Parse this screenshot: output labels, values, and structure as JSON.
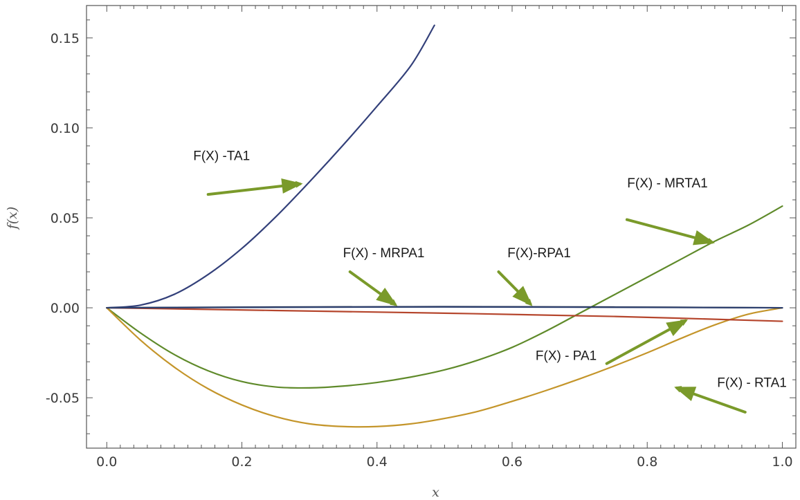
{
  "chart_data": {
    "type": "line",
    "xlabel": "x",
    "ylabel": "f(x)",
    "xlim": [
      -0.03,
      1.02
    ],
    "ylim": [
      -0.078,
      0.168
    ],
    "x_ticks": [
      0.0,
      0.2,
      0.4,
      0.6,
      0.8,
      1.0
    ],
    "x_tick_labels": [
      "0.0",
      "0.2",
      "0.4",
      "0.6",
      "0.8",
      "1.0"
    ],
    "y_ticks": [
      -0.05,
      0.0,
      0.05,
      0.1,
      0.15
    ],
    "y_tick_labels": [
      "-0.05",
      "0.00",
      "0.05",
      "0.10",
      "0.15"
    ],
    "grid": false,
    "series": [
      {
        "name": "F(X) -TA1",
        "color": "#33407a",
        "x": [
          0.0,
          0.05,
          0.1,
          0.15,
          0.2,
          0.25,
          0.3,
          0.35,
          0.4,
          0.45,
          0.485
        ],
        "y": [
          0.0,
          0.0015,
          0.0075,
          0.0185,
          0.033,
          0.0505,
          0.07,
          0.0905,
          0.112,
          0.1345,
          0.157
        ]
      },
      {
        "name": "F(X) - MRTA1",
        "color": "#5f8a2a",
        "x": [
          0.0,
          0.05,
          0.1,
          0.15,
          0.2,
          0.25,
          0.3,
          0.35,
          0.4,
          0.45,
          0.5,
          0.55,
          0.6,
          0.65,
          0.7,
          0.75,
          0.8,
          0.85,
          0.9,
          0.95,
          1.0
        ],
        "y": [
          0.0,
          -0.014,
          -0.026,
          -0.035,
          -0.041,
          -0.044,
          -0.0445,
          -0.0435,
          -0.0415,
          -0.0385,
          -0.0345,
          -0.029,
          -0.022,
          -0.013,
          -0.003,
          0.007,
          0.017,
          0.027,
          0.037,
          0.046,
          0.0565
        ]
      },
      {
        "name": "F(X) - RTA1",
        "color": "#c4952a",
        "x": [
          0.0,
          0.05,
          0.1,
          0.15,
          0.2,
          0.25,
          0.3,
          0.35,
          0.4,
          0.45,
          0.5,
          0.55,
          0.6,
          0.65,
          0.7,
          0.75,
          0.8,
          0.85,
          0.9,
          0.95,
          1.0
        ],
        "y": [
          0.0,
          -0.018,
          -0.033,
          -0.045,
          -0.054,
          -0.0605,
          -0.0645,
          -0.066,
          -0.066,
          -0.0645,
          -0.0615,
          -0.0575,
          -0.052,
          -0.046,
          -0.0395,
          -0.0325,
          -0.025,
          -0.017,
          -0.0095,
          -0.0035,
          0.0
        ]
      },
      {
        "name": "F(X) - PA1",
        "color": "#b5452c",
        "x": [
          0.0,
          0.25,
          0.5,
          0.75,
          1.0
        ],
        "y": [
          0.0,
          -0.0015,
          -0.003,
          -0.0048,
          -0.0075
        ]
      },
      {
        "name": "F(X) - MRPA1",
        "color": "#1d2433",
        "x": [
          0.0,
          0.25,
          0.5,
          0.75,
          1.0
        ],
        "y": [
          0.0,
          0.0004,
          0.0006,
          0.0004,
          0.0
        ]
      },
      {
        "name": "F(X)-RPA1",
        "color": "#2c3f6e",
        "x": [
          0.0,
          0.25,
          0.5,
          0.75,
          1.0
        ],
        "y": [
          0.0,
          0.0003,
          0.0005,
          0.0003,
          0.0
        ]
      }
    ],
    "annotations": [
      {
        "text": "F(X) -TA1",
        "label_at": [
          0.17,
          0.082
        ],
        "arrow_from": [
          0.15,
          0.063
        ],
        "arrow_to": [
          0.29,
          0.069
        ]
      },
      {
        "text": "F(X) - MRTA1",
        "label_at": [
          0.83,
          0.067
        ],
        "arrow_from": [
          0.77,
          0.049
        ],
        "arrow_to": [
          0.9,
          0.036
        ]
      },
      {
        "text": "F(X) - MRPA1",
        "label_at": [
          0.41,
          0.028
        ],
        "arrow_from": [
          0.36,
          0.02
        ],
        "arrow_to": [
          0.43,
          0.001
        ]
      },
      {
        "text": "F(X)-RPA1",
        "label_at": [
          0.64,
          0.028
        ],
        "arrow_from": [
          0.58,
          0.02
        ],
        "arrow_to": [
          0.63,
          0.001
        ]
      },
      {
        "text": "F(X) - PA1",
        "label_at": [
          0.68,
          -0.029
        ],
        "arrow_from": [
          0.74,
          -0.031
        ],
        "arrow_to": [
          0.86,
          -0.0065
        ]
      },
      {
        "text": "F(X) - RTA1",
        "label_at": [
          0.955,
          -0.044
        ],
        "arrow_from": [
          0.945,
          -0.058
        ],
        "arrow_to": [
          0.84,
          -0.044
        ]
      }
    ],
    "arrow_color": "#7a9a2a",
    "legend": "none"
  }
}
